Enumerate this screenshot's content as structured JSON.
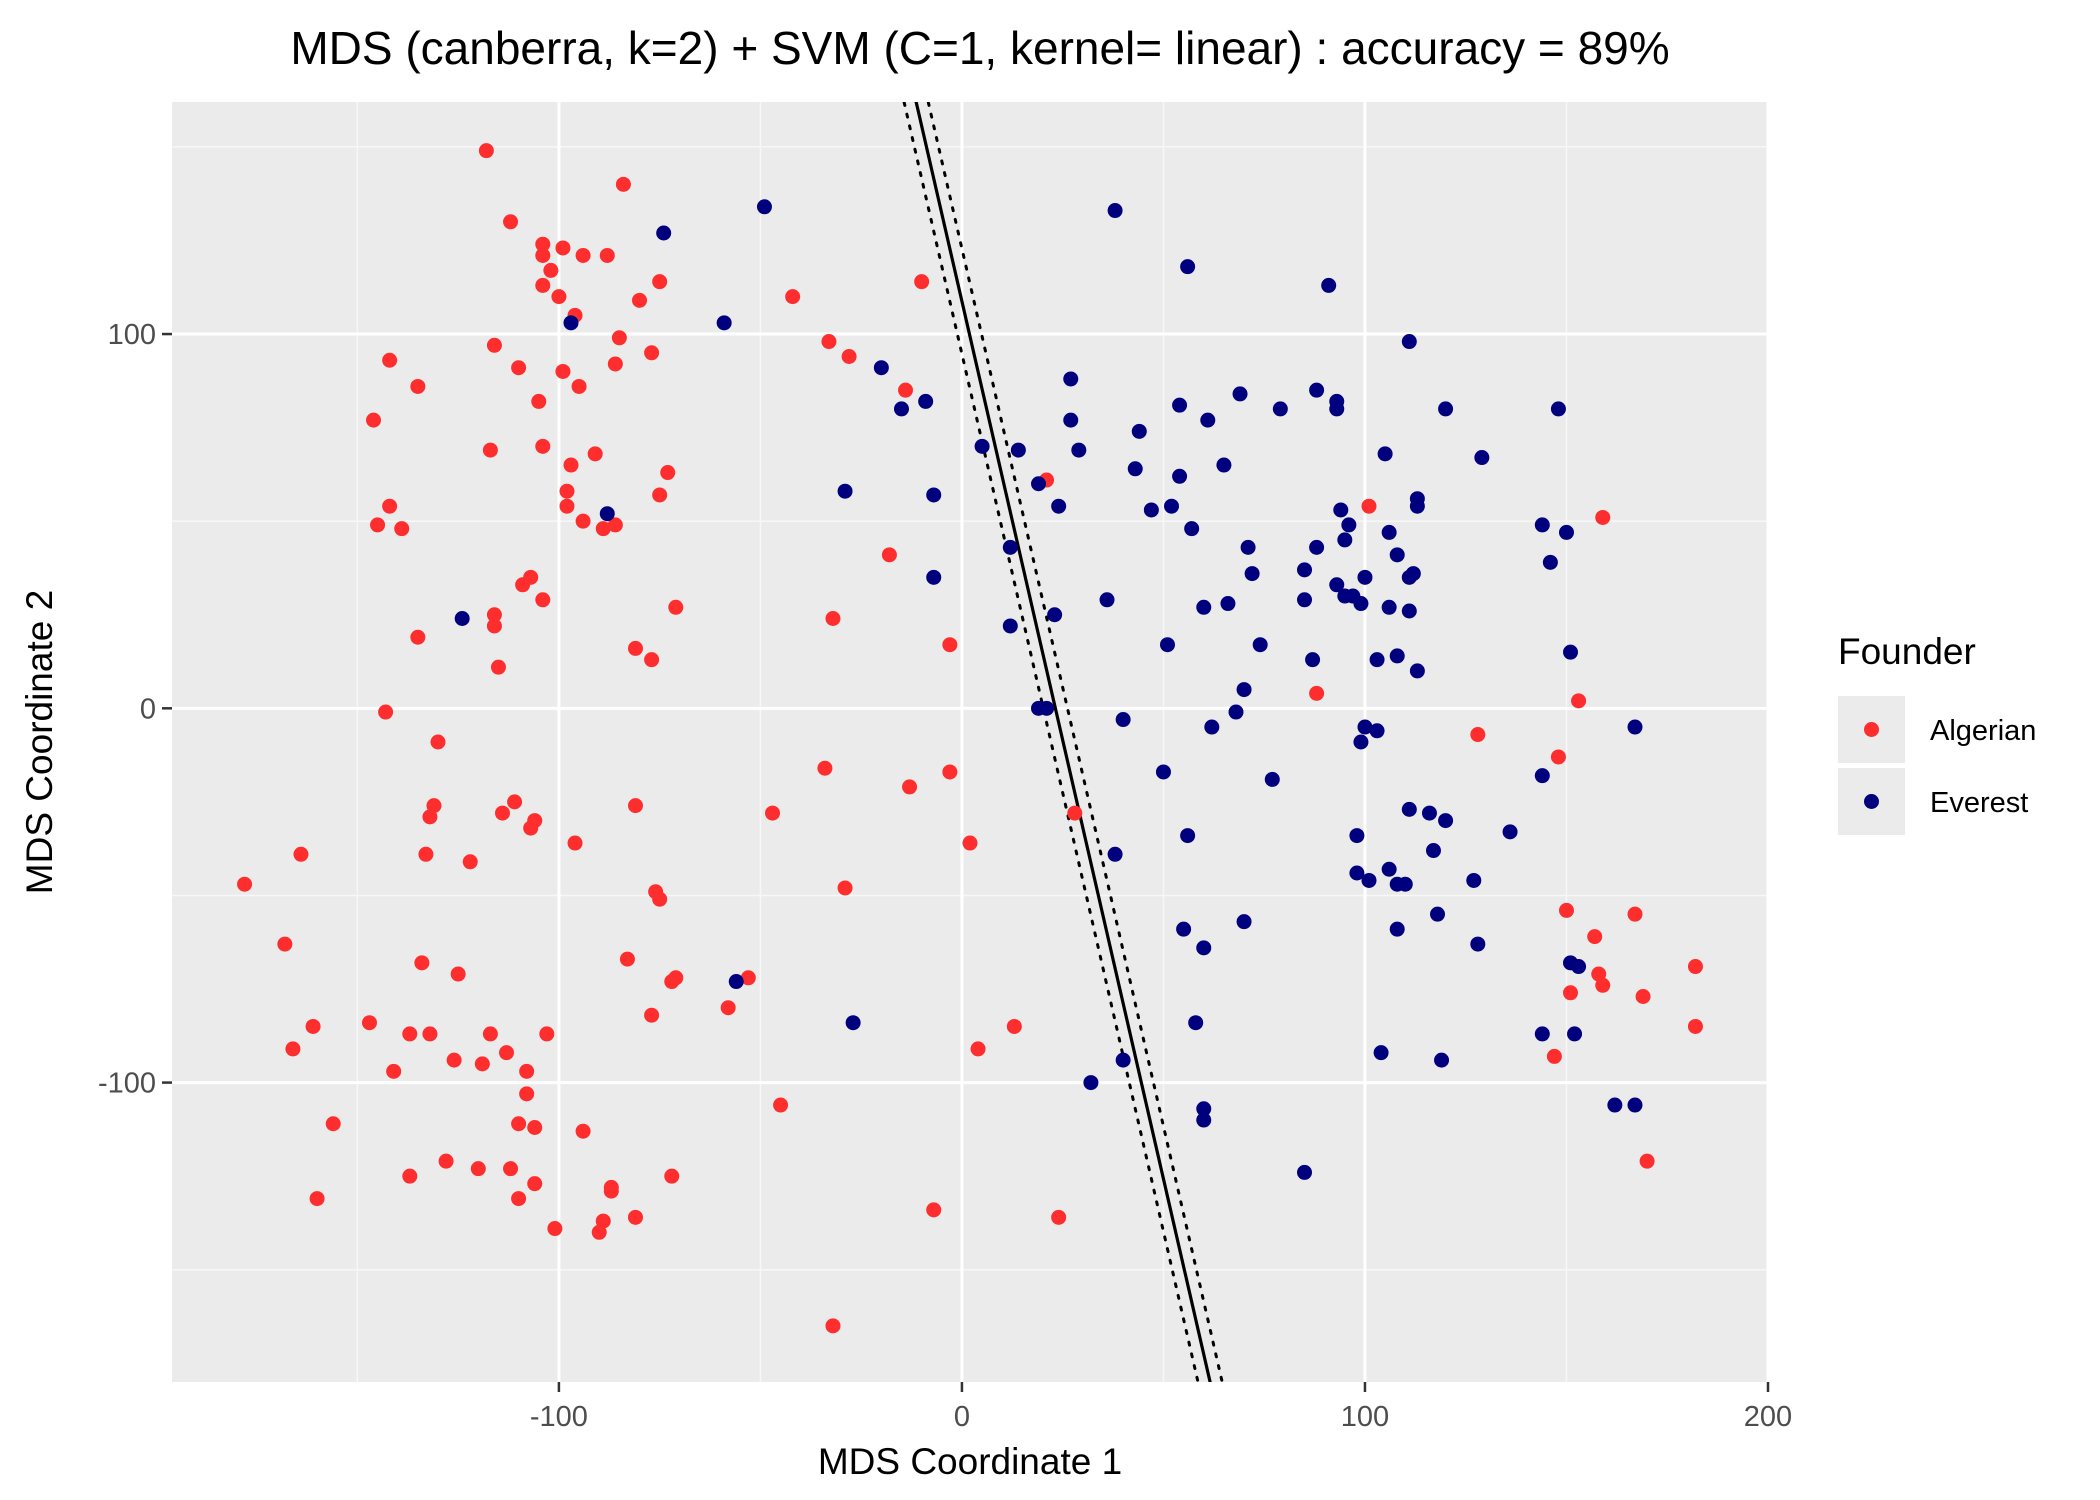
{
  "chart_data": {
    "type": "scatter",
    "title": "MDS (canberra, k=2) + SVM (C=1, kernel= linear) : accuracy = 89%",
    "xlabel": "MDS Coordinate 1",
    "ylabel": "MDS Coordinate 2",
    "xlim": [
      -196,
      200
    ],
    "ylim": [
      -180,
      162
    ],
    "x_ticks": [
      -100,
      0,
      100,
      200
    ],
    "x_tick_labels": [
      "-100",
      "0",
      "100",
      "200"
    ],
    "y_ticks": [
      -100,
      0,
      100
    ],
    "y_tick_labels": [
      "-100",
      "0",
      "100"
    ],
    "grid": true,
    "legend": {
      "title": "Founder",
      "position": "right"
    },
    "decision_boundary": {
      "solid": [
        [
          -12,
          165
        ],
        [
          62,
          -182
        ]
      ],
      "dotted_left": [
        [
          -15,
          165
        ],
        [
          59,
          -182
        ]
      ],
      "dotted_right": [
        [
          -9,
          165
        ],
        [
          65,
          -182
        ]
      ]
    },
    "series": [
      {
        "name": "Algerian",
        "color": "#ff2e2e",
        "points": [
          [
            -118,
            149
          ],
          [
            -84,
            140
          ],
          [
            -112,
            130
          ],
          [
            -104,
            124
          ],
          [
            -99,
            123
          ],
          [
            -104,
            121
          ],
          [
            -94,
            121
          ],
          [
            -88,
            121
          ],
          [
            -102,
            117
          ],
          [
            -104,
            113
          ],
          [
            -75,
            114
          ],
          [
            -10,
            114
          ],
          [
            -42,
            110
          ],
          [
            -100,
            110
          ],
          [
            -80,
            109
          ],
          [
            -96,
            105
          ],
          [
            -85,
            99
          ],
          [
            -33,
            98
          ],
          [
            -116,
            97
          ],
          [
            -28,
            94
          ],
          [
            -77,
            95
          ],
          [
            -142,
            93
          ],
          [
            -110,
            91
          ],
          [
            -86,
            92
          ],
          [
            -99,
            90
          ],
          [
            -14,
            85
          ],
          [
            -135,
            86
          ],
          [
            -95,
            86
          ],
          [
            -105,
            82
          ],
          [
            -146,
            77
          ],
          [
            -104,
            70
          ],
          [
            -117,
            69
          ],
          [
            -91,
            68
          ],
          [
            -97,
            65
          ],
          [
            -73,
            63
          ],
          [
            21,
            61
          ],
          [
            -98,
            58
          ],
          [
            -75,
            57
          ],
          [
            -98,
            54
          ],
          [
            -142,
            54
          ],
          [
            101,
            54
          ],
          [
            -94,
            50
          ],
          [
            159,
            51
          ],
          [
            -145,
            49
          ],
          [
            -86,
            49
          ],
          [
            -89,
            48
          ],
          [
            -139,
            48
          ],
          [
            -18,
            41
          ],
          [
            -107,
            35
          ],
          [
            -109,
            33
          ],
          [
            -104,
            29
          ],
          [
            -71,
            27
          ],
          [
            -116,
            25
          ],
          [
            -32,
            24
          ],
          [
            -116,
            22
          ],
          [
            -135,
            19
          ],
          [
            -3,
            17
          ],
          [
            -81,
            16
          ],
          [
            -77,
            13
          ],
          [
            -115,
            11
          ],
          [
            88,
            4
          ],
          [
            153,
            2
          ],
          [
            -143,
            -1
          ],
          [
            128,
            -7
          ],
          [
            -130,
            -9
          ],
          [
            148,
            -13
          ],
          [
            -34,
            -16
          ],
          [
            -3,
            -17
          ],
          [
            -13,
            -21
          ],
          [
            -111,
            -25
          ],
          [
            -131,
            -26
          ],
          [
            -114,
            -28
          ],
          [
            -81,
            -26
          ],
          [
            28,
            -28
          ],
          [
            -47,
            -28
          ],
          [
            -132,
            -29
          ],
          [
            -106,
            -30
          ],
          [
            -107,
            -32
          ],
          [
            2,
            -36
          ],
          [
            -96,
            -36
          ],
          [
            -133,
            -39
          ],
          [
            -164,
            -39
          ],
          [
            -122,
            -41
          ],
          [
            -76,
            -49
          ],
          [
            -29,
            -48
          ],
          [
            -178,
            -47
          ],
          [
            -75,
            -51
          ],
          [
            150,
            -54
          ],
          [
            167,
            -55
          ],
          [
            157,
            -61
          ],
          [
            -168,
            -63
          ],
          [
            -134,
            -68
          ],
          [
            -83,
            -67
          ],
          [
            182,
            -69
          ],
          [
            158,
            -71
          ],
          [
            -125,
            -71
          ],
          [
            -71,
            -72
          ],
          [
            -53,
            -72
          ],
          [
            -72,
            -73
          ],
          [
            159,
            -74
          ],
          [
            151,
            -76
          ],
          [
            169,
            -77
          ],
          [
            -58,
            -80
          ],
          [
            -77,
            -82
          ],
          [
            -147,
            -84
          ],
          [
            -161,
            -85
          ],
          [
            13,
            -85
          ],
          [
            182,
            -85
          ],
          [
            -137,
            -87
          ],
          [
            -132,
            -87
          ],
          [
            -117,
            -87
          ],
          [
            -103,
            -87
          ],
          [
            4,
            -91
          ],
          [
            -166,
            -91
          ],
          [
            -113,
            -92
          ],
          [
            -126,
            -94
          ],
          [
            -119,
            -95
          ],
          [
            147,
            -93
          ],
          [
            -141,
            -97
          ],
          [
            -108,
            -97
          ],
          [
            -108,
            -103
          ],
          [
            -45,
            -106
          ],
          [
            -156,
            -111
          ],
          [
            -110,
            -111
          ],
          [
            -106,
            -112
          ],
          [
            -94,
            -113
          ],
          [
            -128,
            -121
          ],
          [
            170,
            -121
          ],
          [
            -112,
            -123
          ],
          [
            -120,
            -123
          ],
          [
            -137,
            -125
          ],
          [
            -72,
            -125
          ],
          [
            -106,
            -127
          ],
          [
            -87,
            -128
          ],
          [
            -87,
            -129
          ],
          [
            -160,
            -131
          ],
          [
            -110,
            -131
          ],
          [
            -7,
            -134
          ],
          [
            -81,
            -136
          ],
          [
            -89,
            -137
          ],
          [
            24,
            -136
          ],
          [
            -101,
            -139
          ],
          [
            -90,
            -140
          ],
          [
            -32,
            -165
          ]
        ]
      },
      {
        "name": "Everest",
        "color": "#00007f",
        "points": [
          [
            -49,
            134
          ],
          [
            38,
            133
          ],
          [
            -74,
            127
          ],
          [
            56,
            118
          ],
          [
            91,
            113
          ],
          [
            -59,
            103
          ],
          [
            -97,
            103
          ],
          [
            111,
            98
          ],
          [
            -20,
            91
          ],
          [
            27,
            88
          ],
          [
            69,
            84
          ],
          [
            88,
            85
          ],
          [
            -9,
            82
          ],
          [
            54,
            81
          ],
          [
            93,
            82
          ],
          [
            -15,
            80
          ],
          [
            79,
            80
          ],
          [
            93,
            80
          ],
          [
            120,
            80
          ],
          [
            148,
            80
          ],
          [
            27,
            77
          ],
          [
            61,
            77
          ],
          [
            44,
            74
          ],
          [
            5,
            70
          ],
          [
            14,
            69
          ],
          [
            29,
            69
          ],
          [
            105,
            68
          ],
          [
            129,
            67
          ],
          [
            65,
            65
          ],
          [
            43,
            64
          ],
          [
            54,
            62
          ],
          [
            19,
            60
          ],
          [
            -29,
            58
          ],
          [
            -7,
            57
          ],
          [
            52,
            54
          ],
          [
            24,
            54
          ],
          [
            47,
            53
          ],
          [
            113,
            56
          ],
          [
            113,
            54
          ],
          [
            -88,
            52
          ],
          [
            94,
            53
          ],
          [
            96,
            49
          ],
          [
            144,
            49
          ],
          [
            57,
            48
          ],
          [
            106,
            47
          ],
          [
            150,
            47
          ],
          [
            12,
            43
          ],
          [
            71,
            43
          ],
          [
            88,
            43
          ],
          [
            95,
            45
          ],
          [
            108,
            41
          ],
          [
            146,
            39
          ],
          [
            85,
            37
          ],
          [
            72,
            36
          ],
          [
            112,
            36
          ],
          [
            100,
            35
          ],
          [
            -7,
            35
          ],
          [
            111,
            35
          ],
          [
            93,
            33
          ],
          [
            95,
            30
          ],
          [
            97,
            30
          ],
          [
            36,
            29
          ],
          [
            85,
            29
          ],
          [
            60,
            27
          ],
          [
            66,
            28
          ],
          [
            99,
            28
          ],
          [
            106,
            27
          ],
          [
            111,
            26
          ],
          [
            23,
            25
          ],
          [
            -124,
            24
          ],
          [
            12,
            22
          ],
          [
            74,
            17
          ],
          [
            51,
            17
          ],
          [
            151,
            15
          ],
          [
            108,
            14
          ],
          [
            87,
            13
          ],
          [
            103,
            13
          ],
          [
            113,
            10
          ],
          [
            70,
            5
          ],
          [
            19,
            0
          ],
          [
            21,
            0
          ],
          [
            40,
            -3
          ],
          [
            68,
            -1
          ],
          [
            62,
            -5
          ],
          [
            100,
            -5
          ],
          [
            103,
            -6
          ],
          [
            167,
            -5
          ],
          [
            99,
            -9
          ],
          [
            50,
            -17
          ],
          [
            77,
            -19
          ],
          [
            144,
            -18
          ],
          [
            111,
            -27
          ],
          [
            116,
            -28
          ],
          [
            120,
            -30
          ],
          [
            136,
            -33
          ],
          [
            98,
            -34
          ],
          [
            56,
            -34
          ],
          [
            117,
            -38
          ],
          [
            38,
            -39
          ],
          [
            106,
            -43
          ],
          [
            98,
            -44
          ],
          [
            101,
            -46
          ],
          [
            108,
            -47
          ],
          [
            110,
            -47
          ],
          [
            127,
            -46
          ],
          [
            118,
            -55
          ],
          [
            70,
            -57
          ],
          [
            108,
            -59
          ],
          [
            55,
            -59
          ],
          [
            128,
            -63
          ],
          [
            60,
            -64
          ],
          [
            151,
            -68
          ],
          [
            153,
            -69
          ],
          [
            -56,
            -73
          ],
          [
            -27,
            -84
          ],
          [
            58,
            -84
          ],
          [
            144,
            -87
          ],
          [
            152,
            -87
          ],
          [
            104,
            -92
          ],
          [
            40,
            -94
          ],
          [
            119,
            -94
          ],
          [
            32,
            -100
          ],
          [
            60,
            -107
          ],
          [
            162,
            -106
          ],
          [
            167,
            -106
          ],
          [
            60,
            -110
          ],
          [
            85,
            -124
          ]
        ]
      }
    ]
  }
}
